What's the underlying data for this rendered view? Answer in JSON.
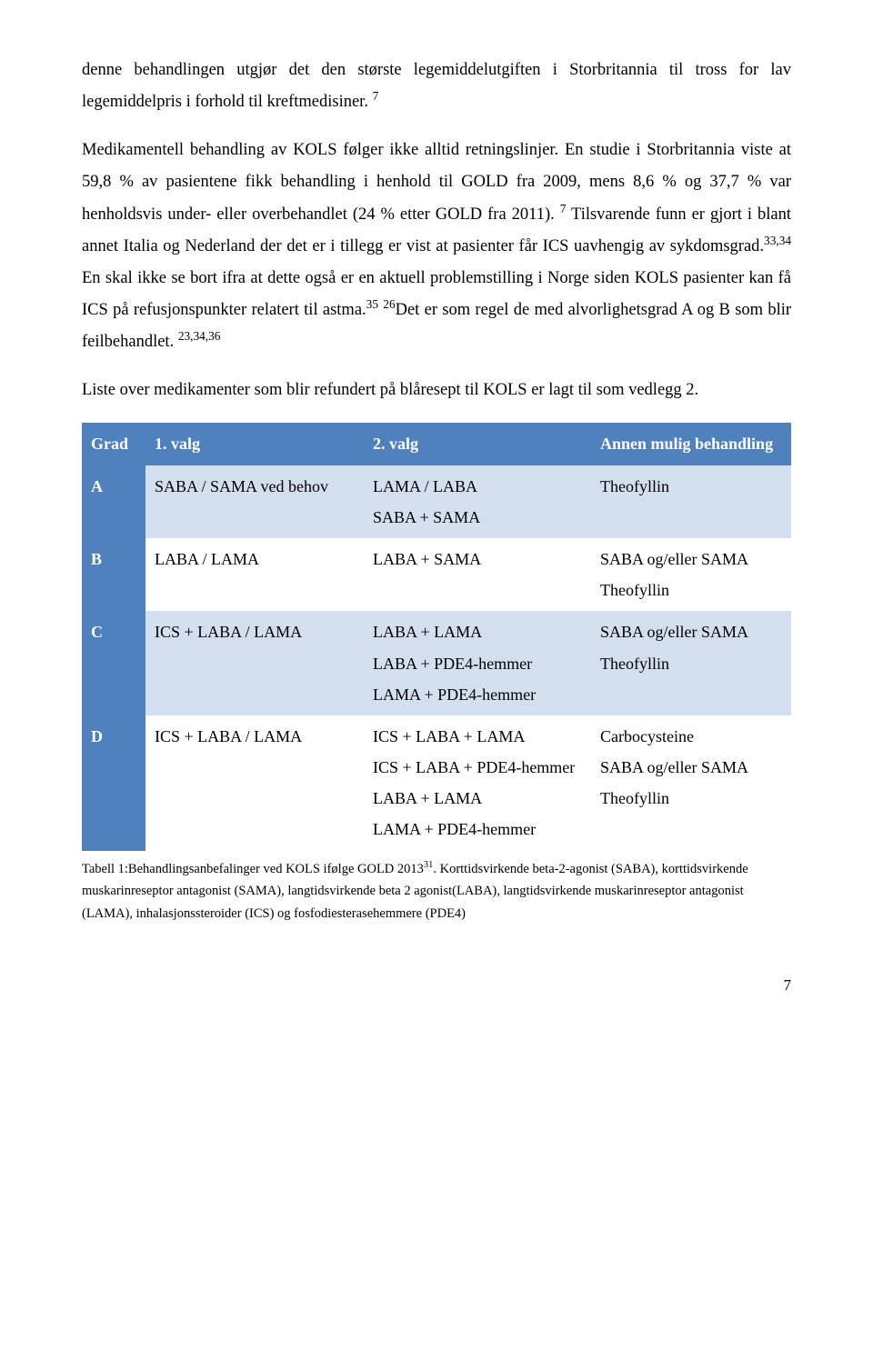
{
  "paragraphs": {
    "p1_a": "denne behandlingen utgjør det den største legemiddelutgiften i Storbritannia til tross for lav legemiddelpris i forhold til kreftmedisiner. ",
    "p1_sup": "7",
    "p2_a": "Medikamentell behandling av KOLS følger ikke alltid retningslinjer. En studie i Storbritannia viste at 59,8 % av pasientene fikk behandling i henhold til GOLD fra 2009, mens 8,6 % og 37,7 % var henholdsvis under- eller overbehandlet (24 % etter GOLD fra 2011). ",
    "p2_sup1": "7",
    "p2_b": " Tilsvarende funn er gjort i blant annet Italia og Nederland der det er i tillegg er vist at pasienter får ICS uavhengig av sykdomsgrad.",
    "p2_sup2": "33,34",
    "p2_c": " En skal ikke se bort ifra at dette også er en aktuell problemstilling i Norge siden KOLS pasienter kan få ICS på refusjonspunkter relatert til astma.",
    "p2_sup3": "35",
    "p2_d": " ",
    "p2_sup4": "26",
    "p2_e": "Det er som regel de med alvorlighetsgrad A og B som blir feilbehandlet. ",
    "p2_sup5": "23,34,36",
    "p3": "Liste over medikamenter som blir refundert på blåresept til KOLS er lagt til som vedlegg 2."
  },
  "table": {
    "header_bg": "#4f81bd",
    "firstcol_bg": "#4f81bd",
    "row_bg_odd": "#d3dfee",
    "row_bg_even": "#ffffff",
    "border_color": "#ffffff",
    "columns": [
      "Grad",
      "1. valg",
      "2. valg",
      "Annen mulig behandling"
    ],
    "col_widths": [
      "70px",
      "240px",
      "250px",
      "auto"
    ],
    "rows": [
      {
        "grade": "A",
        "c1": "SABA / SAMA ved behov",
        "c2": "LAMA / LABA\nSABA + SAMA",
        "c3": "Theofyllin",
        "bg": "#d3dfee"
      },
      {
        "grade": "B",
        "c1": "LABA / LAMA",
        "c2": "LABA + SAMA",
        "c3": "SABA og/eller SAMA\nTheofyllin",
        "bg": "#ffffff"
      },
      {
        "grade": "C",
        "c1": "ICS + LABA / LAMA",
        "c2": "LABA + LAMA\nLABA + PDE4-hemmer\nLAMA + PDE4-hemmer",
        "c3": "SABA og/eller SAMA\nTheofyllin",
        "bg": "#d3dfee"
      },
      {
        "grade": "D",
        "c1": "ICS + LABA / LAMA",
        "c2": "ICS + LABA + LAMA\nICS + LABA + PDE4-hemmer\nLABA + LAMA\nLAMA + PDE4-hemmer",
        "c3": "Carbocysteine\nSABA og/eller SAMA\nTheofyllin",
        "bg": "#ffffff"
      }
    ]
  },
  "caption": {
    "a": "Tabell 1:Behandlingsanbefalinger ved KOLS ifølge GOLD 2013",
    "sup": "31",
    "b": ". Korttidsvirkende beta-2-agonist (SABA), korttidsvirkende muskarinreseptor antagonist (SAMA), langtidsvirkende beta 2 agonist(LABA), langtidsvirkende muskarinreseptor antagonist (LAMA), inhalasjonssteroider (ICS) og fosfodiesterasehemmere (PDE4)"
  },
  "page_number": "7"
}
